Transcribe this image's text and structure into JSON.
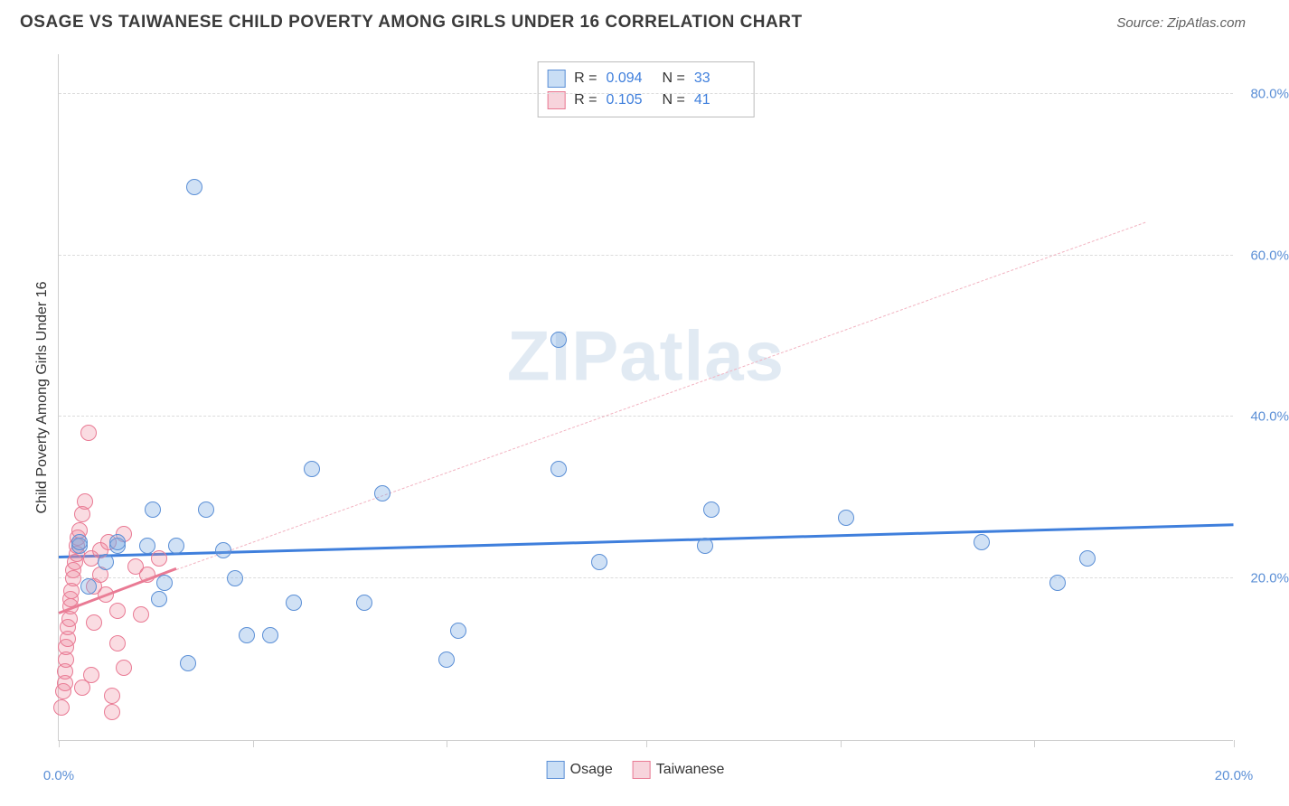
{
  "header": {
    "title": "OSAGE VS TAIWANESE CHILD POVERTY AMONG GIRLS UNDER 16 CORRELATION CHART",
    "source_prefix": "Source: ",
    "source_name": "ZipAtlas.com"
  },
  "chart": {
    "type": "scatter",
    "ylabel": "Child Poverty Among Girls Under 16",
    "xlim": [
      0,
      20
    ],
    "ylim": [
      0,
      85
    ],
    "xtick_positions": [
      0,
      3.3,
      6.6,
      10,
      13.3,
      16.6,
      20
    ],
    "xtick_labels": {
      "0": "0.0%",
      "20": "20.0%"
    },
    "ytick_positions": [
      20,
      40,
      60,
      80
    ],
    "ytick_labels": [
      "20.0%",
      "40.0%",
      "60.0%",
      "80.0%"
    ],
    "grid_color": "#dcdcdc",
    "axis_color": "#cfcfcf",
    "background_color": "#ffffff",
    "watermark": "ZIPatlas",
    "series": {
      "osage": {
        "label": "Osage",
        "color_fill": "rgba(120,170,225,0.35)",
        "color_stroke": "#5b8fd6",
        "marker_size": 18,
        "trend_line": {
          "x1": 0,
          "y1": 22.5,
          "x2": 20,
          "y2": 26.5,
          "style": "solid",
          "color": "#3f7fdc",
          "width": 3
        },
        "points": [
          {
            "x": 0.35,
            "y": 24.0
          },
          {
            "x": 0.35,
            "y": 24.5
          },
          {
            "x": 0.5,
            "y": 19.0
          },
          {
            "x": 0.8,
            "y": 22.0
          },
          {
            "x": 1.0,
            "y": 24.0
          },
          {
            "x": 1.0,
            "y": 24.5
          },
          {
            "x": 1.5,
            "y": 24.0
          },
          {
            "x": 1.6,
            "y": 28.5
          },
          {
            "x": 1.7,
            "y": 17.5
          },
          {
            "x": 1.8,
            "y": 19.5
          },
          {
            "x": 2.0,
            "y": 24.0
          },
          {
            "x": 2.2,
            "y": 9.5
          },
          {
            "x": 2.3,
            "y": 68.5
          },
          {
            "x": 2.5,
            "y": 28.5
          },
          {
            "x": 2.8,
            "y": 23.5
          },
          {
            "x": 3.2,
            "y": 13.0
          },
          {
            "x": 3.6,
            "y": 13.0
          },
          {
            "x": 4.0,
            "y": 17.0
          },
          {
            "x": 4.3,
            "y": 33.5
          },
          {
            "x": 5.2,
            "y": 17.0
          },
          {
            "x": 5.5,
            "y": 30.5
          },
          {
            "x": 6.6,
            "y": 10.0
          },
          {
            "x": 6.8,
            "y": 13.5
          },
          {
            "x": 8.5,
            "y": 33.5
          },
          {
            "x": 8.5,
            "y": 49.5
          },
          {
            "x": 9.2,
            "y": 22.0
          },
          {
            "x": 11.0,
            "y": 24.0
          },
          {
            "x": 11.1,
            "y": 28.5
          },
          {
            "x": 13.4,
            "y": 27.5
          },
          {
            "x": 15.7,
            "y": 24.5
          },
          {
            "x": 17.0,
            "y": 19.5
          },
          {
            "x": 17.5,
            "y": 22.5
          },
          {
            "x": 3.0,
            "y": 20.0
          }
        ]
      },
      "taiwanese": {
        "label": "Taiwanese",
        "color_fill": "rgba(240,140,160,0.30)",
        "color_stroke": "#e97a94",
        "marker_size": 18,
        "trend_line_solid": {
          "x1": 0,
          "y1": 15.5,
          "x2": 2.0,
          "y2": 21.0,
          "style": "solid",
          "color": "#e97a94",
          "width": 3
        },
        "trend_line_dashed": {
          "x1": 2.0,
          "y1": 21.0,
          "x2": 18.5,
          "y2": 64.0,
          "style": "dashed",
          "color": "#f2b3c1",
          "width": 1.5
        },
        "points": [
          {
            "x": 0.05,
            "y": 4.0
          },
          {
            "x": 0.08,
            "y": 6.0
          },
          {
            "x": 0.1,
            "y": 7.0
          },
          {
            "x": 0.1,
            "y": 8.5
          },
          {
            "x": 0.12,
            "y": 10.0
          },
          {
            "x": 0.12,
            "y": 11.5
          },
          {
            "x": 0.15,
            "y": 12.5
          },
          {
            "x": 0.15,
            "y": 14.0
          },
          {
            "x": 0.18,
            "y": 15.0
          },
          {
            "x": 0.2,
            "y": 16.5
          },
          {
            "x": 0.2,
            "y": 17.5
          },
          {
            "x": 0.22,
            "y": 18.5
          },
          {
            "x": 0.25,
            "y": 20.0
          },
          {
            "x": 0.25,
            "y": 21.0
          },
          {
            "x": 0.28,
            "y": 22.0
          },
          {
            "x": 0.3,
            "y": 23.0
          },
          {
            "x": 0.3,
            "y": 24.0
          },
          {
            "x": 0.32,
            "y": 25.0
          },
          {
            "x": 0.35,
            "y": 26.0
          },
          {
            "x": 0.4,
            "y": 28.0
          },
          {
            "x": 0.45,
            "y": 29.5
          },
          {
            "x": 0.5,
            "y": 38.0
          },
          {
            "x": 0.55,
            "y": 22.5
          },
          {
            "x": 0.6,
            "y": 19.0
          },
          {
            "x": 0.6,
            "y": 14.5
          },
          {
            "x": 0.7,
            "y": 23.5
          },
          {
            "x": 0.7,
            "y": 20.5
          },
          {
            "x": 0.8,
            "y": 18.0
          },
          {
            "x": 0.85,
            "y": 24.5
          },
          {
            "x": 0.9,
            "y": 5.5
          },
          {
            "x": 0.9,
            "y": 3.5
          },
          {
            "x": 1.0,
            "y": 16.0
          },
          {
            "x": 1.0,
            "y": 12.0
          },
          {
            "x": 1.1,
            "y": 9.0
          },
          {
            "x": 1.1,
            "y": 25.5
          },
          {
            "x": 1.3,
            "y": 21.5
          },
          {
            "x": 1.4,
            "y": 15.5
          },
          {
            "x": 1.5,
            "y": 20.5
          },
          {
            "x": 1.7,
            "y": 22.5
          },
          {
            "x": 0.4,
            "y": 6.5
          },
          {
            "x": 0.55,
            "y": 8.0
          }
        ]
      }
    },
    "stats_box": {
      "rows": [
        {
          "swatch_fill": "#c9def5",
          "swatch_border": "#5b8fd6",
          "r_label": "R =",
          "r_value": "0.094",
          "n_label": "N =",
          "n_value": "33"
        },
        {
          "swatch_fill": "#f7d4dc",
          "swatch_border": "#e97a94",
          "r_label": "R =",
          "r_value": "0.105",
          "n_label": "N =",
          "n_value": "41"
        }
      ]
    },
    "legend_bottom": [
      {
        "swatch_fill": "#c9def5",
        "swatch_border": "#5b8fd6",
        "label": "Osage"
      },
      {
        "swatch_fill": "#f7d4dc",
        "swatch_border": "#e97a94",
        "label": "Taiwanese"
      }
    ]
  }
}
